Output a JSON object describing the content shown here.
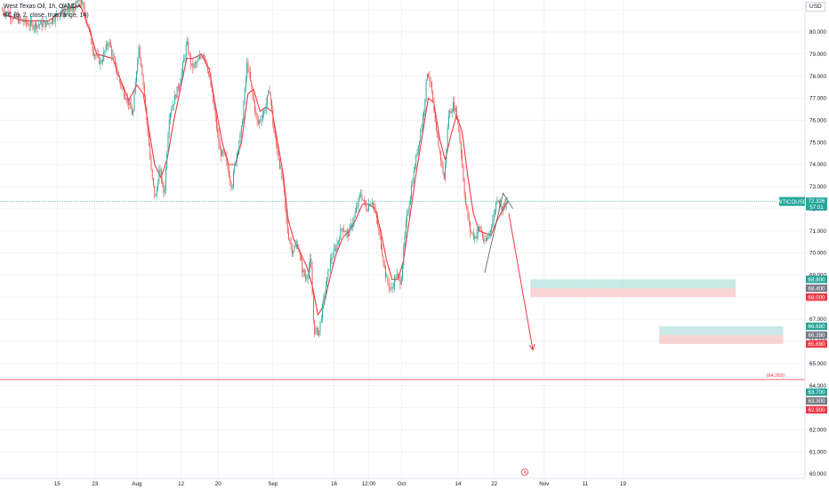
{
  "legend": {
    "line1": "West Texas Oil, 1h, OANDA",
    "line2": "KC (9, 2, close, true range, 14)"
  },
  "axis": {
    "currency": "USD"
  },
  "colors": {
    "grid": "#f0f3fa",
    "up": "#26a69a",
    "down": "#ef5350",
    "kc_line": "#f23645",
    "axis_text": "#131722",
    "tp_zone": "#b2dfdb",
    "sl_zone": "#f8c8c8",
    "symbol_tag": "#26a69a",
    "tp_tag": "#26a69a",
    "neutral_tag": "#787b86",
    "sl_tag": "#f23645"
  },
  "chart_data": {
    "type": "line",
    "title": "",
    "ylim": [
      60.0,
      81.0
    ],
    "xlim": [
      0,
      100
    ],
    "price_ticks": [
      "80.000",
      "79.000",
      "78.000",
      "77.000",
      "76.000",
      "75.000",
      "74.000",
      "73.000",
      "72.000",
      "71.000",
      "70.000",
      "69.000",
      "67.000",
      "66.000",
      "65.000",
      "64.000",
      "62.000",
      "61.000",
      "60.000"
    ],
    "time_ticks": [
      {
        "label": "15",
        "x": 7.1
      },
      {
        "label": "23",
        "x": 11.8
      },
      {
        "label": "Aug",
        "x": 17.0
      },
      {
        "label": "12",
        "x": 22.5
      },
      {
        "label": "20",
        "x": 27.1
      },
      {
        "label": "Sep",
        "x": 33.9
      },
      {
        "label": "16",
        "x": 41.5
      },
      {
        "label": "12:00",
        "x": 45.8
      },
      {
        "label": "Oct",
        "x": 49.9
      },
      {
        "label": "14",
        "x": 56.9
      },
      {
        "label": "22",
        "x": 61.4
      },
      {
        "label": "Nov",
        "x": 67.6
      },
      {
        "label": "11",
        "x": 72.7
      },
      {
        "label": "19",
        "x": 77.4
      }
    ],
    "price_path": [
      [
        0.3,
        81.0
      ],
      [
        2,
        80.6
      ],
      [
        4,
        80.3
      ],
      [
        6,
        80.4
      ],
      [
        7.5,
        80.9
      ],
      [
        9,
        81.0
      ],
      [
        10,
        81.5
      ],
      [
        11,
        80.2
      ],
      [
        11.6,
        79.1
      ],
      [
        12.5,
        78.6
      ],
      [
        13.5,
        79.6
      ],
      [
        14.5,
        78.2
      ],
      [
        15.2,
        77.4
      ],
      [
        16,
        76.8
      ],
      [
        16.5,
        76.2
      ],
      [
        17.2,
        79.4
      ],
      [
        17.6,
        78.4
      ],
      [
        18.3,
        75.7
      ],
      [
        18.8,
        73.6
      ],
      [
        19.3,
        72.4
      ],
      [
        19.8,
        73.8
      ],
      [
        20.4,
        72.6
      ],
      [
        21,
        76.2
      ],
      [
        21.8,
        77.1
      ],
      [
        22.5,
        78.0
      ],
      [
        23.2,
        79.5
      ],
      [
        23.8,
        78.4
      ],
      [
        24.5,
        78.6
      ],
      [
        25.3,
        79.1
      ],
      [
        26,
        78.0
      ],
      [
        26.6,
        76.5
      ],
      [
        27.3,
        74.6
      ],
      [
        28,
        74.3
      ],
      [
        28.8,
        73.0
      ],
      [
        29.4,
        74.5
      ],
      [
        30,
        75.6
      ],
      [
        30.7,
        78.6
      ],
      [
        31.3,
        77.3
      ],
      [
        32,
        75.8
      ],
      [
        32.8,
        76.4
      ],
      [
        33.5,
        77.4
      ],
      [
        34,
        75.5
      ],
      [
        34.6,
        74.3
      ],
      [
        35.2,
        73.0
      ],
      [
        35.7,
        71.0
      ],
      [
        36.3,
        70.1
      ],
      [
        37,
        70.4
      ],
      [
        37.5,
        69.3
      ],
      [
        38,
        68.8
      ],
      [
        38.6,
        69.7
      ],
      [
        39,
        66.5
      ],
      [
        39.6,
        66.4
      ],
      [
        40.3,
        68.1
      ],
      [
        41,
        69.6
      ],
      [
        41.7,
        70.2
      ],
      [
        42.5,
        71.2
      ],
      [
        43.2,
        70.8
      ],
      [
        44,
        71.6
      ],
      [
        44.8,
        72.7
      ],
      [
        45.5,
        72.0
      ],
      [
        46.2,
        72.4
      ],
      [
        46.8,
        71.5
      ],
      [
        47.4,
        70.2
      ],
      [
        48,
        68.8
      ],
      [
        48.6,
        68.3
      ],
      [
        49.2,
        69.0
      ],
      [
        49.8,
        68.7
      ],
      [
        50.4,
        71.2
      ],
      [
        51.2,
        73.2
      ],
      [
        52,
        75.0
      ],
      [
        52.6,
        76.3
      ],
      [
        53.1,
        78.3
      ],
      [
        53.6,
        77.4
      ],
      [
        54.1,
        75.6
      ],
      [
        54.7,
        74.4
      ],
      [
        55.2,
        73.3
      ],
      [
        55.7,
        76.2
      ],
      [
        56.3,
        76.7
      ],
      [
        56.8,
        76.2
      ],
      [
        57.3,
        74.5
      ],
      [
        57.8,
        72.3
      ],
      [
        58.4,
        71.0
      ],
      [
        59,
        70.7
      ],
      [
        59.6,
        71.2
      ],
      [
        60.2,
        70.4
      ],
      [
        60.7,
        70.8
      ],
      [
        61.3,
        71.6
      ],
      [
        61.8,
        72.6
      ],
      [
        62.3,
        72.0
      ],
      [
        62.7,
        72.2
      ],
      [
        63.1,
        72.5
      ]
    ],
    "kc_path": [
      [
        0.3,
        80.8
      ],
      [
        3,
        80.5
      ],
      [
        6,
        80.5
      ],
      [
        8,
        81.0
      ],
      [
        10,
        81.2
      ],
      [
        11.2,
        80.0
      ],
      [
        12,
        79.0
      ],
      [
        13,
        78.9
      ],
      [
        14,
        78.8
      ],
      [
        15,
        77.8
      ],
      [
        16,
        76.9
      ],
      [
        17,
        77.6
      ],
      [
        17.8,
        77.2
      ],
      [
        18.5,
        75.6
      ],
      [
        19.2,
        74.0
      ],
      [
        20,
        73.4
      ],
      [
        20.8,
        74.3
      ],
      [
        21.6,
        76.0
      ],
      [
        22.4,
        77.4
      ],
      [
        23.2,
        78.8
      ],
      [
        24,
        78.8
      ],
      [
        25,
        79.0
      ],
      [
        26,
        78.3
      ],
      [
        26.8,
        76.6
      ],
      [
        27.6,
        75.0
      ],
      [
        28.4,
        74.0
      ],
      [
        29.2,
        74.0
      ],
      [
        30,
        75.0
      ],
      [
        30.8,
        77.2
      ],
      [
        31.5,
        77.4
      ],
      [
        32.3,
        76.4
      ],
      [
        33,
        76.6
      ],
      [
        33.8,
        76.4
      ],
      [
        34.5,
        75.0
      ],
      [
        35.2,
        73.5
      ],
      [
        35.8,
        71.5
      ],
      [
        36.5,
        70.6
      ],
      [
        37.3,
        70.0
      ],
      [
        38.1,
        69.4
      ],
      [
        38.8,
        68.5
      ],
      [
        39.5,
        67.2
      ],
      [
        40.2,
        67.6
      ],
      [
        41,
        68.9
      ],
      [
        41.8,
        70.0
      ],
      [
        42.6,
        70.7
      ],
      [
        43.4,
        71.0
      ],
      [
        44.2,
        71.5
      ],
      [
        45,
        72.2
      ],
      [
        45.8,
        72.2
      ],
      [
        46.6,
        72.0
      ],
      [
        47.3,
        71.0
      ],
      [
        48,
        69.7
      ],
      [
        48.7,
        68.8
      ],
      [
        49.4,
        68.8
      ],
      [
        50.1,
        69.6
      ],
      [
        50.9,
        71.6
      ],
      [
        51.7,
        73.6
      ],
      [
        52.5,
        75.4
      ],
      [
        53.2,
        77.0
      ],
      [
        53.9,
        76.8
      ],
      [
        54.6,
        75.2
      ],
      [
        55.3,
        74.2
      ],
      [
        56,
        75.3
      ],
      [
        56.7,
        76.2
      ],
      [
        57.4,
        75.5
      ],
      [
        58.1,
        73.5
      ],
      [
        58.8,
        71.8
      ],
      [
        59.5,
        71.0
      ],
      [
        60.2,
        70.9
      ],
      [
        61,
        70.8
      ],
      [
        61.8,
        71.5
      ],
      [
        62.5,
        72.0
      ],
      [
        63.1,
        72.3
      ]
    ],
    "symbol_label": {
      "name": "WTICOUSD",
      "price": "72.326",
      "countdown": "57:01",
      "value": 72.326
    },
    "current_line": 72.326,
    "trade_zones": [
      {
        "name": "upper-zone",
        "x_start": 65.9,
        "x_end": 91.4,
        "tp": 68.8,
        "entry": 68.4,
        "sl": 68.0,
        "tp_label": "68.800",
        "entry_label": "68.400",
        "sl_label": "68.000"
      },
      {
        "name": "lower-zone",
        "x_start": 81.9,
        "x_end": 97.3,
        "tp": 66.68,
        "entry": 66.28,
        "sl": 65.88,
        "tp_label": "66.680",
        "entry_label": "66.280",
        "sl_label": "65.880"
      }
    ],
    "target_line": {
      "value": 64.269,
      "label": "(64.269)"
    },
    "price_tags": [
      {
        "label": "63.700",
        "value": 63.7,
        "kind": "tp"
      },
      {
        "label": "63.300",
        "value": 63.3,
        "kind": "neutral"
      },
      {
        "label": "62.900",
        "value": 62.9,
        "kind": "sl"
      }
    ],
    "annotations": {
      "triangle": [
        [
          60.2,
          69.1
        ],
        [
          62.5,
          72.7
        ],
        [
          63.7,
          72.0
        ]
      ],
      "arrow": [
        [
          63.2,
          71.8
        ],
        [
          66.2,
          65.6
        ]
      ]
    }
  }
}
